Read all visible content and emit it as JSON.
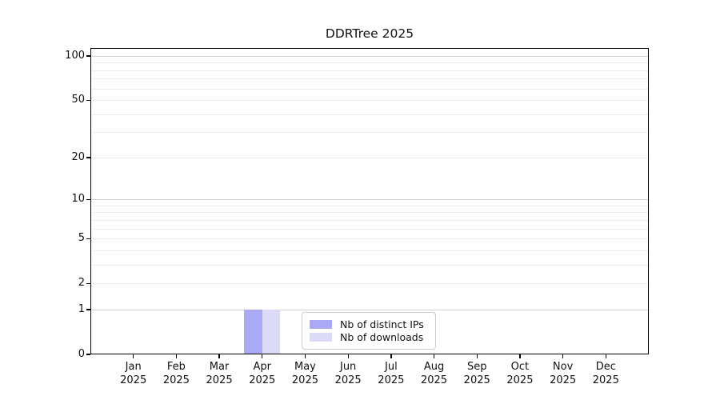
{
  "chart_data": {
    "type": "bar",
    "title": "DDRTree 2025",
    "xlabel": "",
    "ylabel": "",
    "year": "2025",
    "categories": [
      "Jan",
      "Feb",
      "Mar",
      "Apr",
      "May",
      "Jun",
      "Jul",
      "Aug",
      "Sep",
      "Oct",
      "Nov",
      "Dec"
    ],
    "series": [
      {
        "name": "Nb of distinct IPs",
        "color": "#a9a9f5",
        "values": [
          0,
          0,
          0,
          1,
          0,
          0,
          0,
          0,
          0,
          0,
          0,
          0
        ]
      },
      {
        "name": "Nb of downloads",
        "color": "#dbdbf8",
        "values": [
          0,
          0,
          0,
          1,
          0,
          0,
          0,
          0,
          0,
          0,
          0,
          0
        ]
      }
    ],
    "yscale": "log1p",
    "ylim": [
      0,
      113
    ],
    "y_ticks": [
      100,
      50,
      20,
      10,
      5,
      2,
      1,
      0
    ],
    "y_major_gridlines": [
      1,
      10,
      100
    ],
    "y_minor_gridlines": [
      2,
      3,
      4,
      5,
      6,
      7,
      8,
      9,
      20,
      30,
      40,
      50,
      60,
      70,
      80,
      90
    ],
    "grid": "horizontal",
    "legend_position": "inside lower-center",
    "colors": {
      "major_grid": "#d2d2d2",
      "minor_grid": "#ededed",
      "axis": "#000000",
      "background": "#ffffff"
    }
  }
}
